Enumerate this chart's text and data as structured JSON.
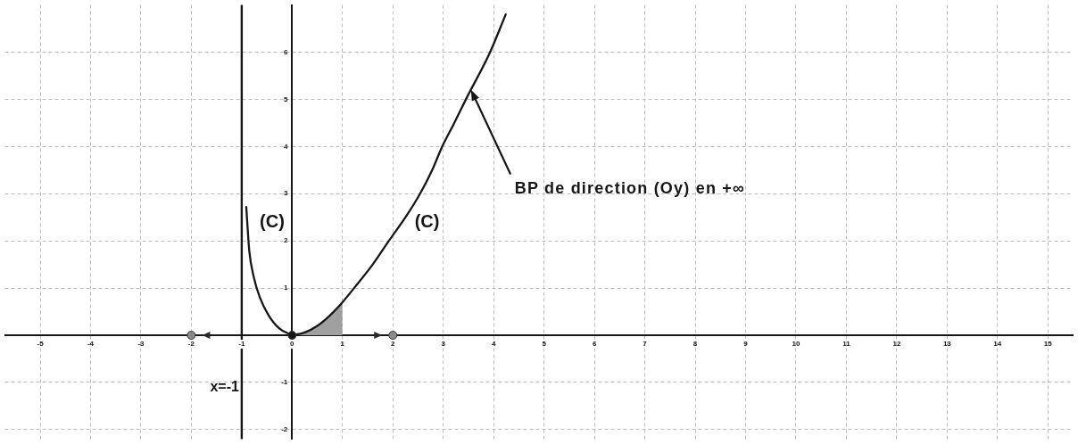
{
  "chart_data": {
    "type": "line",
    "xlim": [
      -5.7,
      15.5
    ],
    "ylim": [
      -2.2,
      7
    ],
    "xticks": [
      -5,
      -4,
      -3,
      -2,
      -1,
      0,
      1,
      2,
      3,
      4,
      5,
      6,
      7,
      8,
      9,
      10,
      11,
      12,
      13,
      14,
      15
    ],
    "yticks": [
      -2,
      -1,
      {
        "value": 0,
        "label": null
      },
      1,
      2,
      3,
      4,
      5,
      6
    ],
    "grid": true,
    "series": [
      {
        "type": "area",
        "color": "#a0a0a0",
        "x": [
          0,
          0.25,
          0.5,
          0.75,
          1
        ],
        "values": [
          0,
          0.06,
          0.2,
          0.42,
          0.7
        ]
      },
      {
        "name": "(C)",
        "color": "#161616",
        "x": [
          -0.91,
          -0.85,
          -0.76,
          -0.64,
          -0.47,
          -0.26,
          0
        ],
        "values": [
          2.72,
          1.79,
          1.23,
          0.8,
          0.43,
          0.15,
          0
        ]
      },
      {
        "name": "(C)",
        "color": "#161616",
        "x": [
          0,
          0.25,
          0.5,
          0.75,
          1,
          1.23,
          1.6,
          1.92,
          2.25,
          2.54,
          2.78,
          2.98,
          3.22,
          3.45,
          3.93,
          4.24
        ],
        "values": [
          0,
          0.06,
          0.2,
          0.42,
          0.7,
          1,
          1.5,
          2,
          2.5,
          3,
          3.5,
          4,
          4.5,
          5,
          6,
          6.8
        ]
      },
      {
        "type": "scatter",
        "marker": "circle",
        "colors": [
          "#8a8a8a",
          "#161616",
          "#8a8a8a"
        ],
        "x": [
          -2,
          0,
          2
        ],
        "values": [
          0,
          0,
          0
        ]
      }
    ],
    "ref_lines": [
      {
        "axis": "x",
        "value": -1,
        "label": "x=-1",
        "color": "#161616"
      }
    ],
    "annotations": [
      {
        "text": "BP de direction (Oy) en +∞",
        "x": 3.55,
        "y": 5.2
      }
    ]
  }
}
